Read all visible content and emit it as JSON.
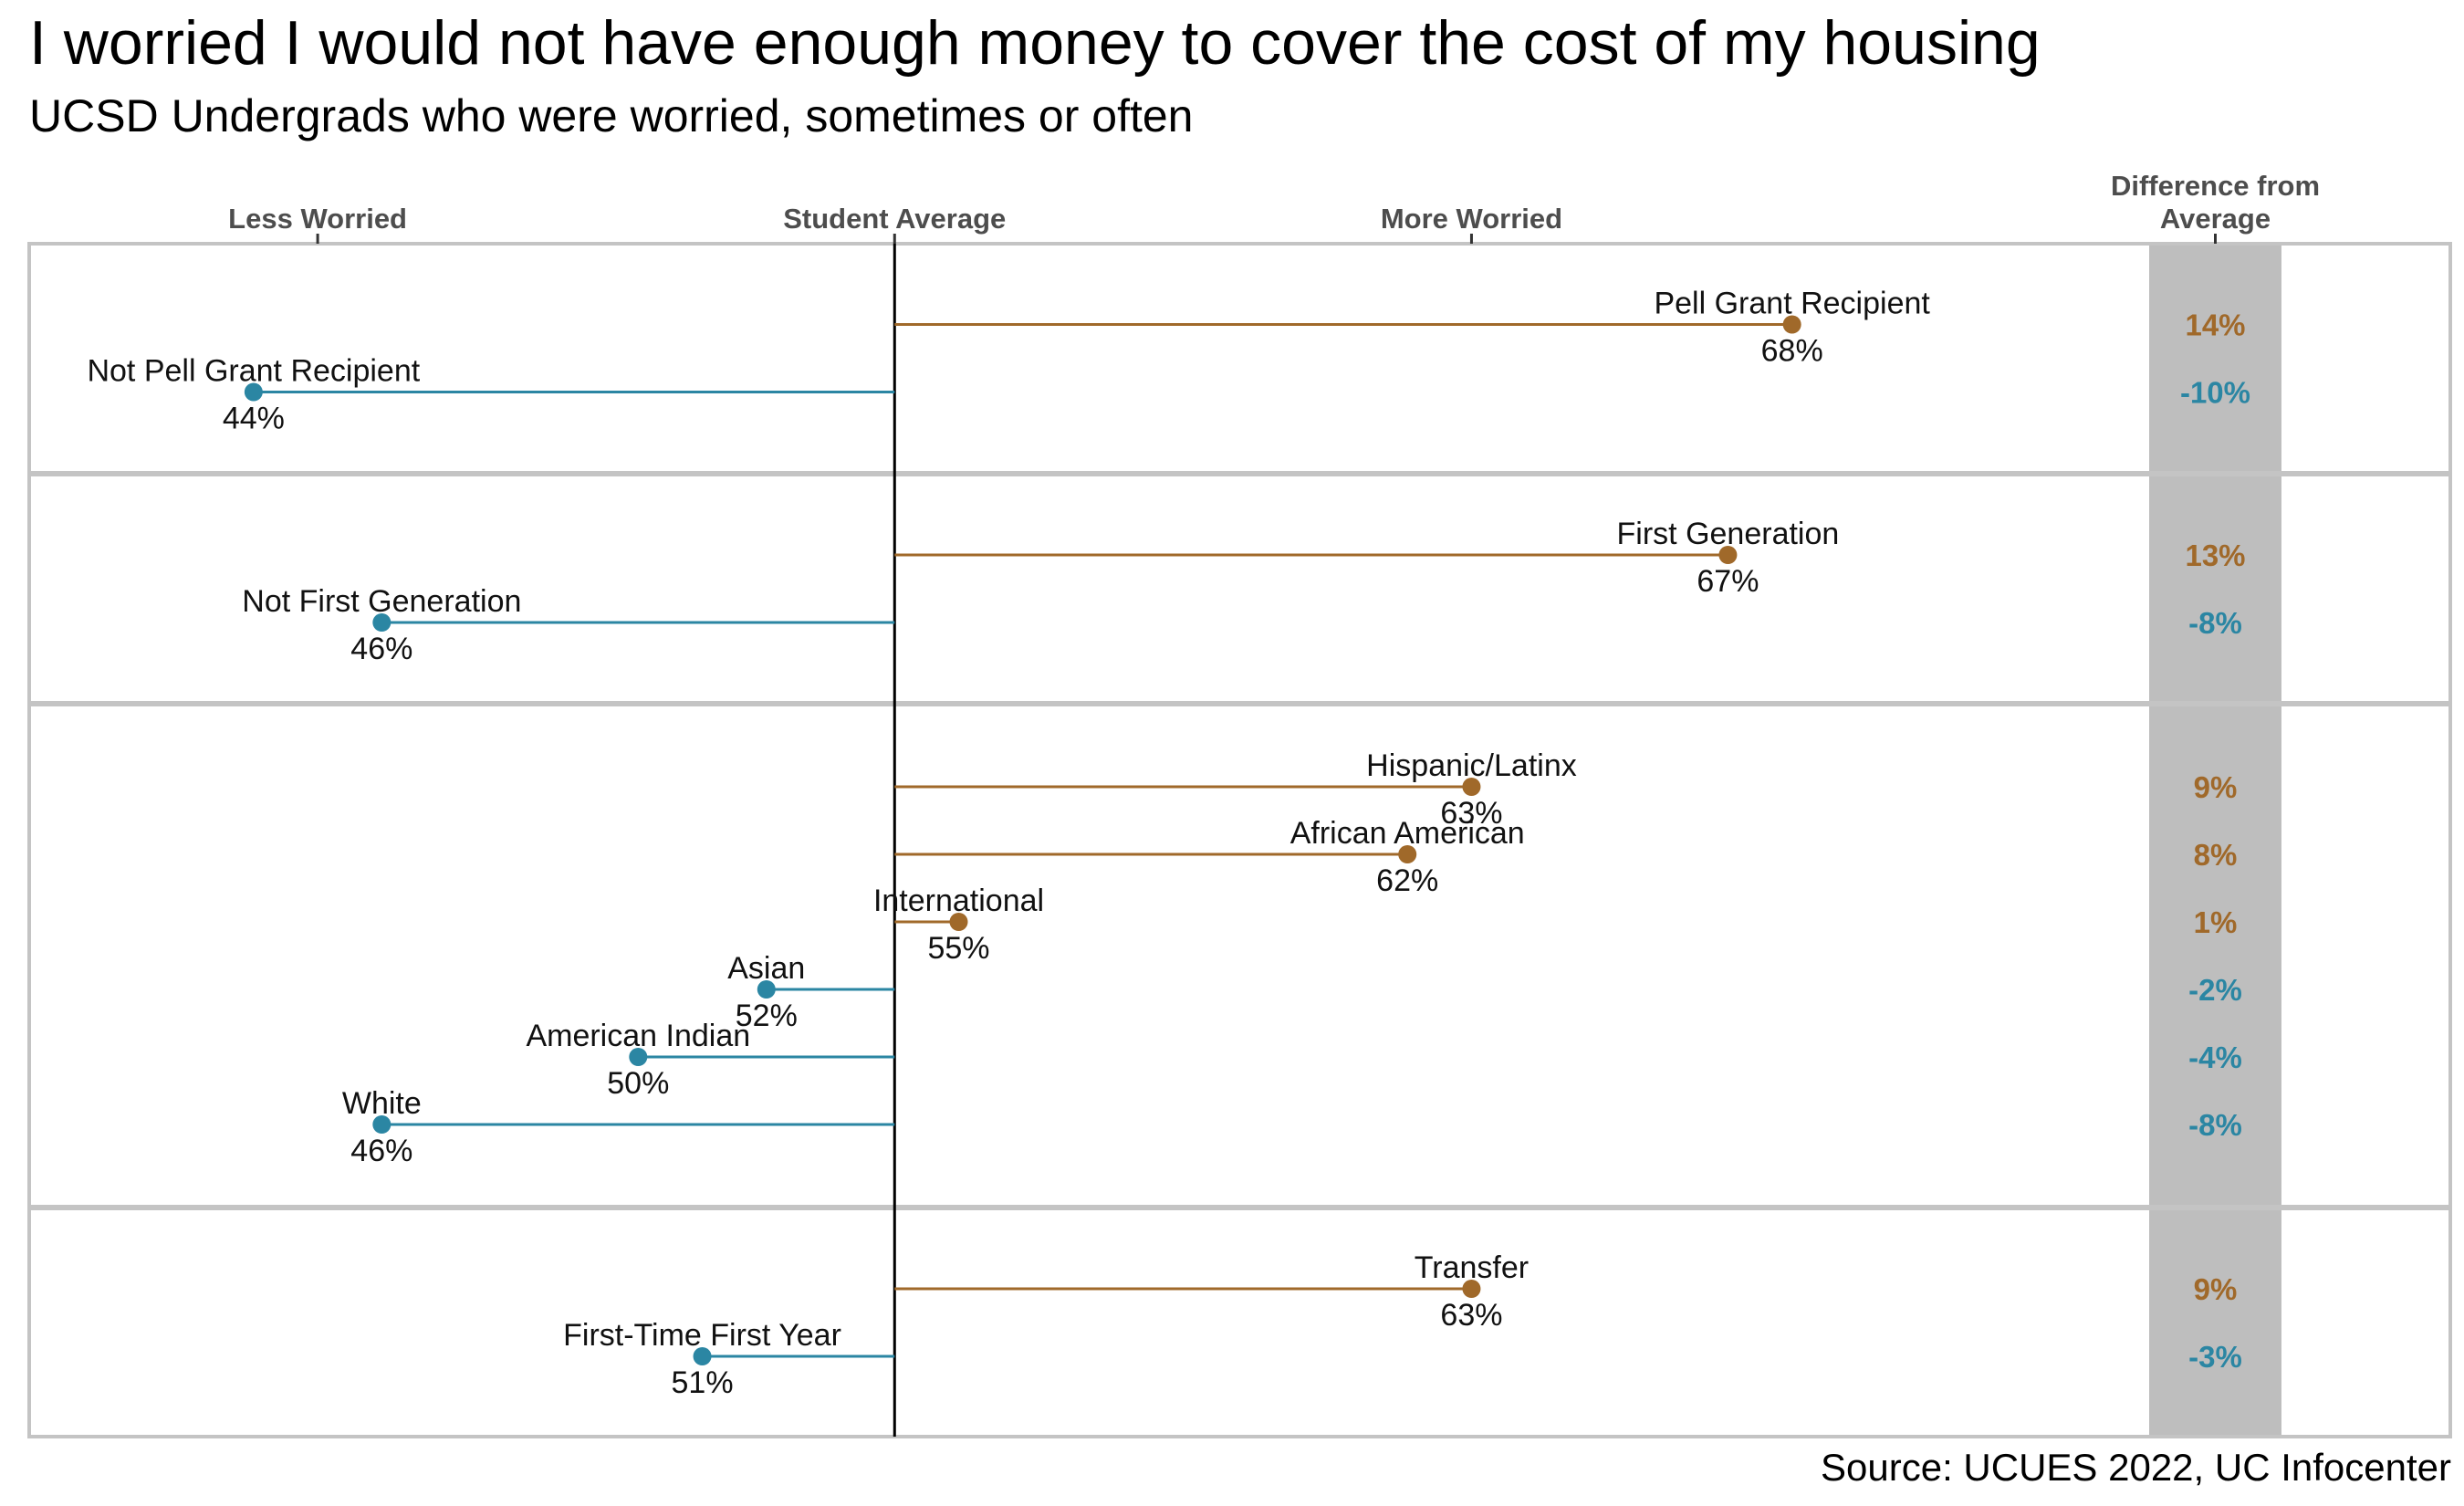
{
  "title": "I worried I would not have enough money to cover the cost of my housing",
  "subtitle": "UCSD Undergrads who were worried, sometimes or often",
  "source": "Source: UCUES 2022, UC Infocenter",
  "colors": {
    "above": "#a0692a",
    "below": "#2b86a3",
    "diff_band": "#bebebe",
    "panel_border": "#c4c4c4"
  },
  "chart_data": {
    "type": "lollipop",
    "average": 54,
    "axis_ticks": [
      {
        "label": "Less Worried",
        "value": 45
      },
      {
        "label": "Student Average",
        "value": 54
      },
      {
        "label": "More Worried",
        "value": 63
      }
    ],
    "diff_header": [
      "Difference from",
      "Average"
    ],
    "xlim": [
      40.5,
      73.5
    ],
    "panels": [
      {
        "items": [
          {
            "label": "Pell Grant Recipient",
            "value": 68,
            "value_label": "68%",
            "diff": "14%"
          },
          {
            "label": "Not Pell Grant Recipient",
            "value": 44,
            "value_label": "44%",
            "diff": "-10%"
          }
        ]
      },
      {
        "items": [
          {
            "label": "First Generation",
            "value": 67,
            "value_label": "67%",
            "diff": "13%"
          },
          {
            "label": "Not First Generation",
            "value": 46,
            "value_label": "46%",
            "diff": "-8%"
          }
        ]
      },
      {
        "items": [
          {
            "label": "Hispanic/Latinx",
            "value": 63,
            "value_label": "63%",
            "diff": "9%"
          },
          {
            "label": "African American",
            "value": 62,
            "value_label": "62%",
            "diff": "8%"
          },
          {
            "label": "International",
            "value": 55,
            "value_label": "55%",
            "diff": "1%"
          },
          {
            "label": "Asian",
            "value": 52,
            "value_label": "52%",
            "diff": "-2%"
          },
          {
            "label": "American Indian",
            "value": 50,
            "value_label": "50%",
            "diff": "-4%"
          },
          {
            "label": "White",
            "value": 46,
            "value_label": "46%",
            "diff": "-8%"
          }
        ]
      },
      {
        "items": [
          {
            "label": "Transfer",
            "value": 63,
            "value_label": "63%",
            "diff": "9%"
          },
          {
            "label": "First-Time First Year",
            "value": 51,
            "value_label": "51%",
            "diff": "-3%"
          }
        ]
      }
    ]
  }
}
